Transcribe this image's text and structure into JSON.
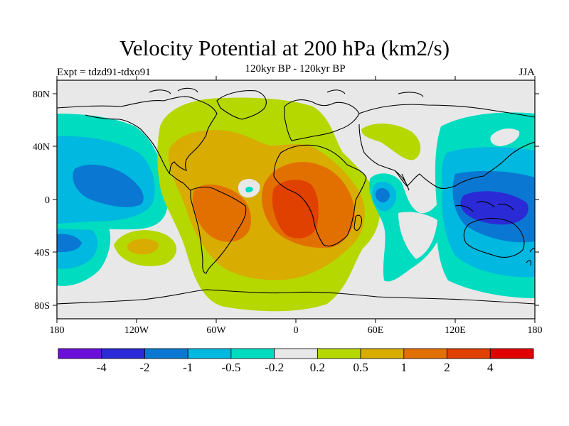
{
  "title": "Velocity Potential at 200 hPa (km2/s)",
  "subtitle": "120kyr BP - 120kyr BP",
  "left_label": "Expt = tdzd91-tdxo91",
  "right_label": "JJA",
  "axes": {
    "lat_ticks": [
      "80N",
      "40N",
      "0",
      "40S",
      "80S"
    ],
    "lon_ticks": [
      "180",
      "120W",
      "60W",
      "0",
      "60E",
      "120E",
      "180"
    ]
  },
  "colorbar": {
    "colors": [
      "#6a10d8",
      "#2a2ad6",
      "#0a78d2",
      "#00b8e0",
      "#00dcc0",
      "#e8e8e8",
      "#b4d800",
      "#d8ac00",
      "#e27000",
      "#e04000",
      "#e00000"
    ],
    "labels": [
      "-4",
      "-2",
      "-1",
      "-0.5",
      "-0.2",
      "0.2",
      "0.5",
      "1",
      "2",
      "4"
    ]
  },
  "colors": {
    "land_outline": "#000000",
    "background_neutral": "#e8e8e8"
  }
}
